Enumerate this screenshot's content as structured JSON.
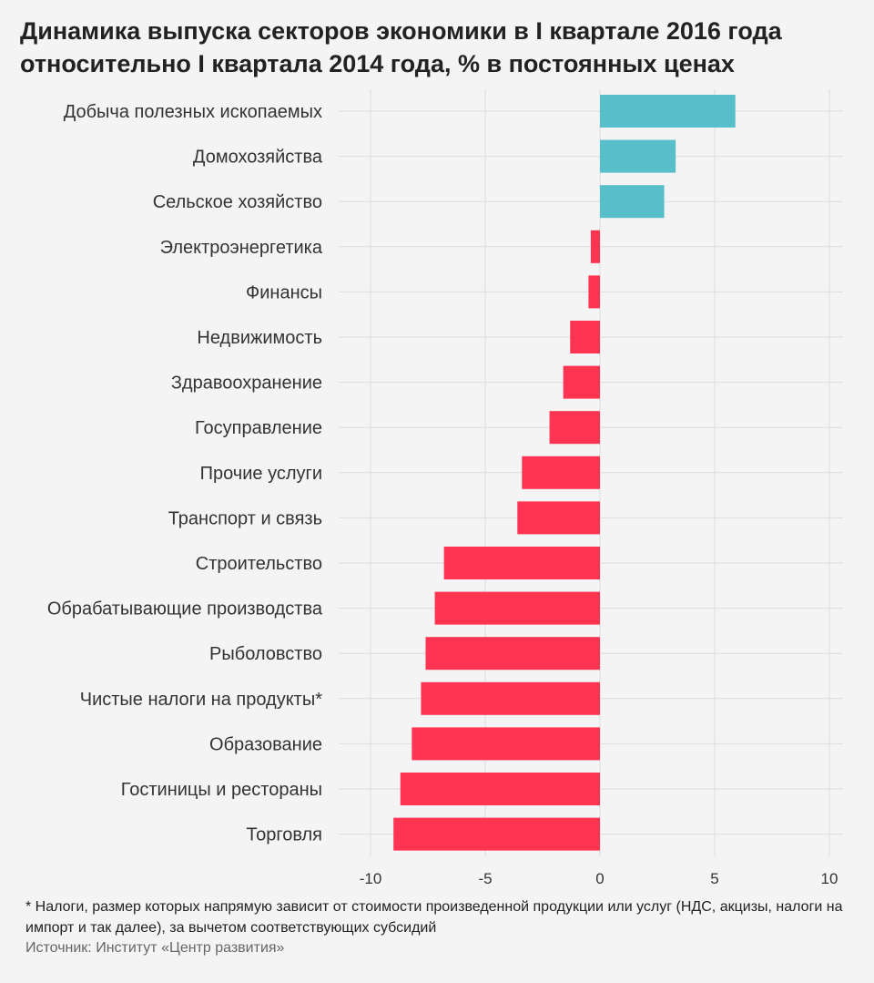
{
  "chart_data": {
    "type": "bar",
    "orientation": "horizontal",
    "title": "Динамика выпуска секторов экономики в I квартале 2016 года относительно I квартала 2014 года, % в постоянных ценах",
    "categories": [
      "Добыча полезных ископаемых",
      "Домохозяйства",
      "Сельское хозяйство",
      "Электроэнергетика",
      "Финансы",
      "Недвижимость",
      "Здравоохранение",
      "Госуправление",
      "Прочие услуги",
      "Транспорт и связь",
      "Строительство",
      "Обрабатывающие производства",
      "Рыболовство",
      "Чистые налоги на продукты*",
      "Образование",
      "Гостиницы и рестораны",
      "Торговля"
    ],
    "values": [
      5.9,
      3.3,
      2.8,
      -0.4,
      -0.5,
      -1.3,
      -1.6,
      -2.2,
      -3.4,
      -3.6,
      -6.8,
      -7.2,
      -7.6,
      -7.8,
      -8.2,
      -8.7,
      -9.0
    ],
    "xlim": [
      -10.5,
      10.5
    ],
    "xticks": [
      -10,
      -5,
      0,
      5,
      10
    ],
    "xtick_labels": [
      "-10",
      "-5",
      "0",
      "5",
      "10"
    ],
    "positive_color": "#56bfca",
    "negative_color": "#ff3352",
    "grid": true
  },
  "footnote": "* Налоги, размер которых напрямую зависит от стоимости произведенной продукции или услуг (НДС, акцизы, налоги на импорт и так далее), за вычетом соответствующих субсидий",
  "source": "Источник: Институт «Центр развития»"
}
